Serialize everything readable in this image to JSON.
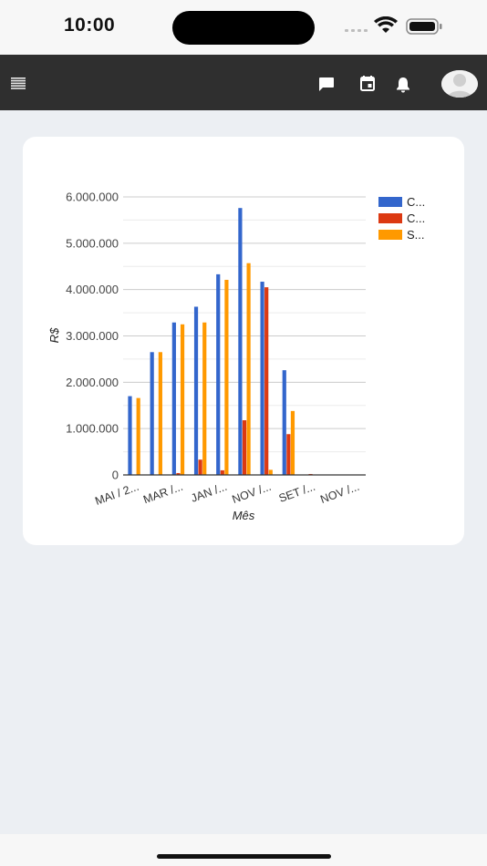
{
  "status_bar": {
    "time": "10:00"
  },
  "toolbar": {
    "menu_icon": "menu-icon",
    "chat_icon": "chat-icon",
    "calendar_icon": "calendar-icon",
    "bell_icon": "bell-icon",
    "avatar_icon": "avatar-icon"
  },
  "colors": {
    "series_1": "#3366cc",
    "series_2": "#dc3912",
    "series_3": "#ff9900"
  },
  "chart_data": {
    "type": "bar",
    "title": "",
    "xlabel": "Mês",
    "ylabel": "R$",
    "ylim": [
      0,
      6000000
    ],
    "yticks": [
      "0",
      "1.000.000",
      "2.000.000",
      "3.000.000",
      "4.000.000",
      "5.000.000",
      "6.000.000"
    ],
    "ytick_values": [
      0,
      1000000,
      2000000,
      3000000,
      4000000,
      5000000,
      6000000
    ],
    "grid": true,
    "legend_position": "top-right",
    "x_tick_labels": [
      "MAI / 2...",
      "MAR /...",
      "JAN /...",
      "NOV /...",
      "SET /...",
      "NOV /..."
    ],
    "series": [
      {
        "name": "C...",
        "color": "#3366cc",
        "values": [
          1700000,
          2650000,
          3290000,
          3630000,
          4330000,
          5760000,
          4170000,
          2260000,
          0,
          0,
          0
        ]
      },
      {
        "name": "C...",
        "color": "#dc3912",
        "values": [
          0,
          0,
          40000,
          330000,
          100000,
          1180000,
          4050000,
          880000,
          20000,
          0,
          0
        ]
      },
      {
        "name": "S...",
        "color": "#ff9900",
        "values": [
          1660000,
          2650000,
          3250000,
          3290000,
          4210000,
          4570000,
          110000,
          1380000,
          0,
          0,
          0
        ]
      }
    ]
  }
}
